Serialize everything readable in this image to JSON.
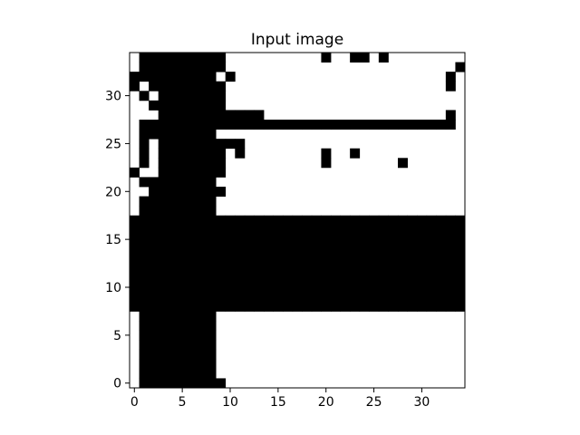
{
  "chart_data": {
    "type": "heatmap",
    "title": "Input image",
    "xlabel": "",
    "ylabel": "",
    "xlim": [
      -0.5,
      34.5
    ],
    "ylim": [
      -0.5,
      34.5
    ],
    "origin": "lower",
    "grid": false,
    "colors": {
      "on": "#000000",
      "off": "#ffffff"
    },
    "x_ticks": [
      0,
      5,
      10,
      15,
      20,
      25,
      30
    ],
    "y_ticks": [
      0,
      5,
      10,
      15,
      20,
      25,
      30
    ],
    "x_tick_labels": [
      "0",
      "5",
      "10",
      "15",
      "20",
      "25",
      "30"
    ],
    "y_tick_labels": [
      "0",
      "5",
      "10",
      "15",
      "20",
      "25",
      "30"
    ],
    "rows_top_to_bottom": [
      "0111111111000000000010011010000000000",
      "01111111110000000000000000000000001000",
      "111111111010000000000000000000000101",
      "101111111100000000000000000000000100",
      "010111111100000000000000000000000000",
      "001111111100000000000000000000000000",
      "000111111111110000000000000000000100",
      "011111111111111111111111111111111100",
      "011111111000000000000000000000000000",
      "010111111111000000000000000000000000",
      "010111111101000000001001000000000000",
      "010111111100000000001000000010000000",
      "100111111100000000000000000000000000",
      "011111111000000000000000000000000000",
      "001111111100000000000000000000000000",
      "011111111000000000000000000000000000",
      "011111111000000000000000000000000000",
      "111111111111111111111111111111111111",
      "111111111111111111111111111111111111",
      "111111111111111111111111111111111111",
      "111111111111111111111111111111111111",
      "111111111111111111111111111111111111",
      "111111111111111111111111111111111111",
      "111111111111111111111111111111111111",
      "111111111111111111111111111111111111",
      "111111111111111111111111111111111111",
      "111111111111111111111111111111111111",
      "011111111000000000000000000000000000",
      "011111111000000000000000000000000000",
      "011111111000000000000000000000000000",
      "011111111000000000000000000000000000",
      "011111111000000000000000000000000000",
      "011111111000000000000000000000000000",
      "011111111000000000000000000000000000",
      "011111111100000000000000000000000000"
    ]
  }
}
